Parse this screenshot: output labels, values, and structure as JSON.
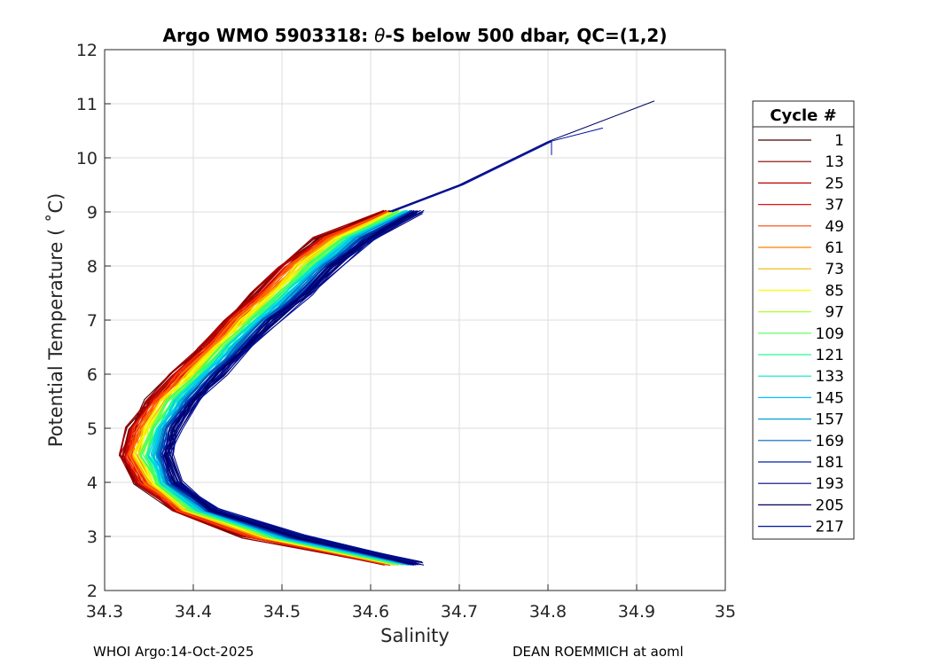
{
  "chart_data": {
    "type": "line",
    "title": "Argo WMO 5903318: θ-S below 500 dbar,  QC=(1,2)",
    "title_parts": {
      "prefix": "Argo WMO 5903318: ",
      "symbol": "θ",
      "suffix": "-S below 500 dbar,  QC=(1,2)"
    },
    "xlabel": "Salinity",
    "ylabel": "Potential Temperature ( ˚C)",
    "xlim": [
      34.3,
      35
    ],
    "ylim": [
      2,
      12
    ],
    "x_ticks": [
      "34.3",
      "34.4",
      "34.5",
      "34.6",
      "34.7",
      "34.8",
      "34.9",
      "35"
    ],
    "y_ticks": [
      "2",
      "3",
      "4",
      "5",
      "6",
      "7",
      "8",
      "9",
      "10",
      "11",
      "12"
    ],
    "grid": true,
    "legend_placement": "right",
    "legend": {
      "title": "Cycle #",
      "entries": [
        {
          "name": "1",
          "color": "#4a0000"
        },
        {
          "name": "13",
          "color": "#800000"
        },
        {
          "name": "25",
          "color": "#b80000"
        },
        {
          "name": "37",
          "color": "#e81010"
        },
        {
          "name": "49",
          "color": "#ff4000"
        },
        {
          "name": "61",
          "color": "#ff8000"
        },
        {
          "name": "73",
          "color": "#f0b800"
        },
        {
          "name": "85",
          "color": "#ffff00"
        },
        {
          "name": "97",
          "color": "#b0ff30"
        },
        {
          "name": "109",
          "color": "#50ff50"
        },
        {
          "name": "121",
          "color": "#20ff90"
        },
        {
          "name": "133",
          "color": "#00e8c8"
        },
        {
          "name": "145",
          "color": "#00c0ff"
        },
        {
          "name": "157",
          "color": "#00a0d0"
        },
        {
          "name": "169",
          "color": "#0060c0"
        },
        {
          "name": "181",
          "color": "#0020a0"
        },
        {
          "name": "193",
          "color": "#000080"
        },
        {
          "name": "205",
          "color": "#00005a"
        },
        {
          "name": "217",
          "color": "#0010a0"
        }
      ]
    },
    "series_base": {
      "theta": [
        2.5,
        3.0,
        3.5,
        4.0,
        4.5,
        5.0,
        5.5,
        6.0,
        6.5,
        7.0,
        7.5,
        8.0,
        8.5,
        9.0
      ],
      "salinity_low": [
        34.61,
        34.45,
        34.37,
        34.33,
        34.31,
        34.32,
        34.34,
        34.37,
        34.4,
        34.43,
        34.46,
        34.49,
        34.53,
        34.61
      ],
      "salinity_high": [
        34.66,
        34.53,
        34.43,
        34.39,
        34.38,
        34.39,
        34.41,
        34.44,
        34.47,
        34.5,
        34.54,
        34.57,
        34.61,
        34.66
      ]
    },
    "warm_tail": {
      "salinity": [
        34.62,
        34.7,
        34.8,
        34.92
      ],
      "theta": [
        9.0,
        9.5,
        10.3,
        11.05
      ]
    }
  },
  "footer": {
    "left": "WHOI Argo:14-Oct-2025",
    "right": "DEAN ROEMMICH at aoml"
  }
}
